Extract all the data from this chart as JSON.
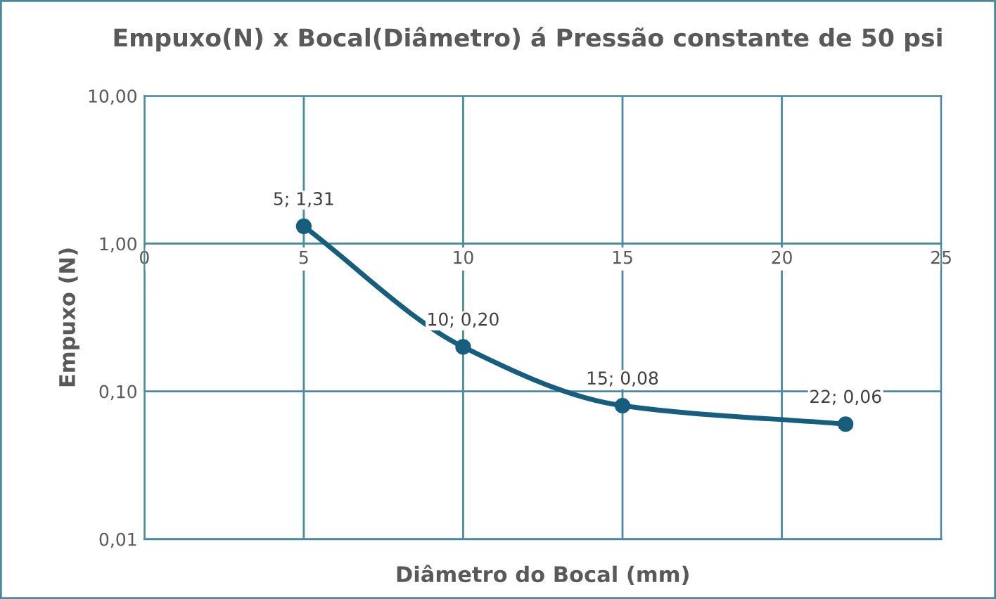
{
  "chart_data": {
    "type": "line",
    "title": "Empuxo(N) x Bocal(Diâmetro) á Pressão constante de 50 psi",
    "xlabel": "Diâmetro do Bocal (mm)",
    "ylabel": "Empuxo (N)",
    "x": [
      5,
      10,
      15,
      22
    ],
    "series": [
      {
        "color": "#175e7e",
        "values": [
          1.31,
          0.2,
          0.08,
          0.06
        ],
        "value_labels": [
          "5; 1,31",
          "10; 0,20",
          "15; 0,08",
          "22; 0,06"
        ]
      }
    ],
    "log": "y",
    "xlim": [
      0,
      25
    ],
    "xticks": [
      0,
      5,
      10,
      15,
      20,
      25
    ],
    "ylim": [
      0.01,
      10
    ],
    "yticks": [
      {
        "value": 0.01,
        "label": "0,01"
      },
      {
        "value": 0.1,
        "label": "0,10"
      },
      {
        "value": 1,
        "label": "1,00"
      },
      {
        "value": 10,
        "label": "10,00"
      }
    ],
    "grid": true,
    "marker": "circle",
    "line_style": "solid",
    "legend": false
  }
}
